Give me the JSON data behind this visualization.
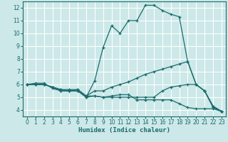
{
  "xlabel": "Humidex (Indice chaleur)",
  "bg_color": "#cce8e8",
  "grid_color": "#ffffff",
  "line_color": "#1a6b6b",
  "xlim": [
    -0.5,
    23.5
  ],
  "ylim": [
    3.5,
    12.5
  ],
  "xticks": [
    0,
    1,
    2,
    3,
    4,
    5,
    6,
    7,
    8,
    9,
    10,
    11,
    12,
    13,
    14,
    15,
    16,
    17,
    18,
    19,
    20,
    21,
    22,
    23
  ],
  "yticks": [
    4,
    5,
    6,
    7,
    8,
    9,
    10,
    11,
    12
  ],
  "lines": [
    {
      "x": [
        0,
        1,
        2,
        3,
        4,
        5,
        6,
        7,
        8,
        9,
        10,
        11,
        12,
        13,
        14,
        15,
        16,
        17,
        18,
        19,
        20,
        21,
        22,
        23
      ],
      "y": [
        6.0,
        6.1,
        6.1,
        5.7,
        5.5,
        5.5,
        5.5,
        5.0,
        6.3,
        8.9,
        10.6,
        10.0,
        11.0,
        11.0,
        12.2,
        12.2,
        11.8,
        11.5,
        11.3,
        7.8,
        6.0,
        5.5,
        4.2,
        3.9
      ]
    },
    {
      "x": [
        0,
        1,
        2,
        3,
        4,
        5,
        6,
        7,
        8,
        9,
        10,
        11,
        12,
        13,
        14,
        15,
        16,
        17,
        18,
        19,
        20,
        21,
        22,
        23
      ],
      "y": [
        6.0,
        6.0,
        6.0,
        5.8,
        5.6,
        5.6,
        5.6,
        5.1,
        5.5,
        5.5,
        5.8,
        6.0,
        6.2,
        6.5,
        6.8,
        7.0,
        7.2,
        7.4,
        7.6,
        7.8,
        6.0,
        5.5,
        4.3,
        3.9
      ]
    },
    {
      "x": [
        0,
        1,
        2,
        3,
        4,
        5,
        6,
        7,
        8,
        9,
        10,
        11,
        12,
        13,
        14,
        15,
        16,
        17,
        18,
        19,
        20,
        21,
        22,
        23
      ],
      "y": [
        6.0,
        6.0,
        6.0,
        5.8,
        5.6,
        5.5,
        5.6,
        5.1,
        5.1,
        5.0,
        5.0,
        5.0,
        5.0,
        5.0,
        5.0,
        5.0,
        5.5,
        5.8,
        5.9,
        6.0,
        6.0,
        5.5,
        4.3,
        3.9
      ]
    },
    {
      "x": [
        0,
        1,
        2,
        3,
        4,
        5,
        6,
        7,
        8,
        9,
        10,
        11,
        12,
        13,
        14,
        15,
        16,
        17,
        18,
        19,
        20,
        21,
        22,
        23
      ],
      "y": [
        6.0,
        6.0,
        6.0,
        5.8,
        5.5,
        5.5,
        5.5,
        5.0,
        5.1,
        5.0,
        5.1,
        5.2,
        5.2,
        4.8,
        4.8,
        4.8,
        4.8,
        4.8,
        4.5,
        4.2,
        4.1,
        4.1,
        4.1,
        3.9
      ]
    }
  ]
}
